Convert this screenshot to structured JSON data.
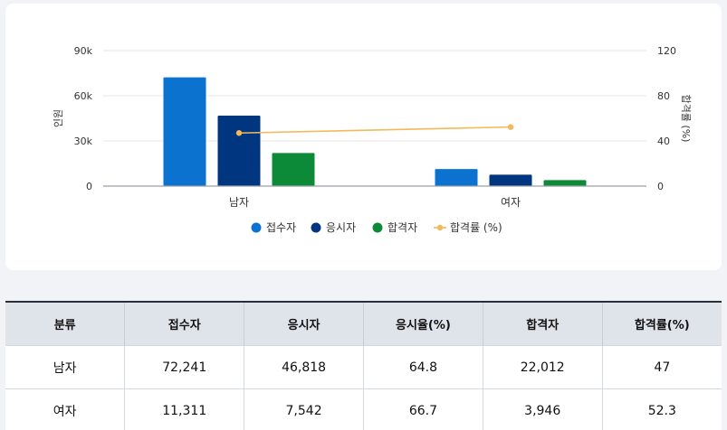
{
  "chart_data": {
    "type": "bar",
    "categories": [
      "남자",
      "여자"
    ],
    "series": [
      {
        "name": "접수자",
        "type": "bar",
        "axis": "left",
        "color": "#0b72d0",
        "values": [
          72241,
          11311
        ]
      },
      {
        "name": "응시자",
        "type": "bar",
        "axis": "left",
        "color": "#00357f",
        "values": [
          46818,
          7542
        ]
      },
      {
        "name": "합격자",
        "type": "bar",
        "axis": "left",
        "color": "#0d8a37",
        "values": [
          22012,
          3946
        ]
      },
      {
        "name": "합격률 (%)",
        "type": "line",
        "axis": "right",
        "color": "#f5b85a",
        "values": [
          47,
          52.3
        ]
      }
    ],
    "y_left": {
      "label": "인원",
      "ticks": [
        "0",
        "30k",
        "60k",
        "90k"
      ],
      "tick_values": [
        0,
        30000,
        60000,
        90000
      ],
      "range": [
        0,
        90000
      ]
    },
    "y_right": {
      "label": "합격률 (%)",
      "ticks": [
        "0",
        "40",
        "80",
        "120"
      ],
      "tick_values": [
        0,
        40,
        80,
        120
      ],
      "range": [
        0,
        120
      ]
    },
    "grid": true,
    "legend_position": "bottom"
  },
  "table": {
    "headers": [
      "분류",
      "접수자",
      "응시자",
      "응시율(%)",
      "합격자",
      "합격률(%)"
    ],
    "rows": [
      [
        "남자",
        "72,241",
        "46,818",
        "64.8",
        "22,012",
        "47"
      ],
      [
        "여자",
        "11,311",
        "7,542",
        "66.7",
        "3,946",
        "52.3"
      ]
    ]
  }
}
